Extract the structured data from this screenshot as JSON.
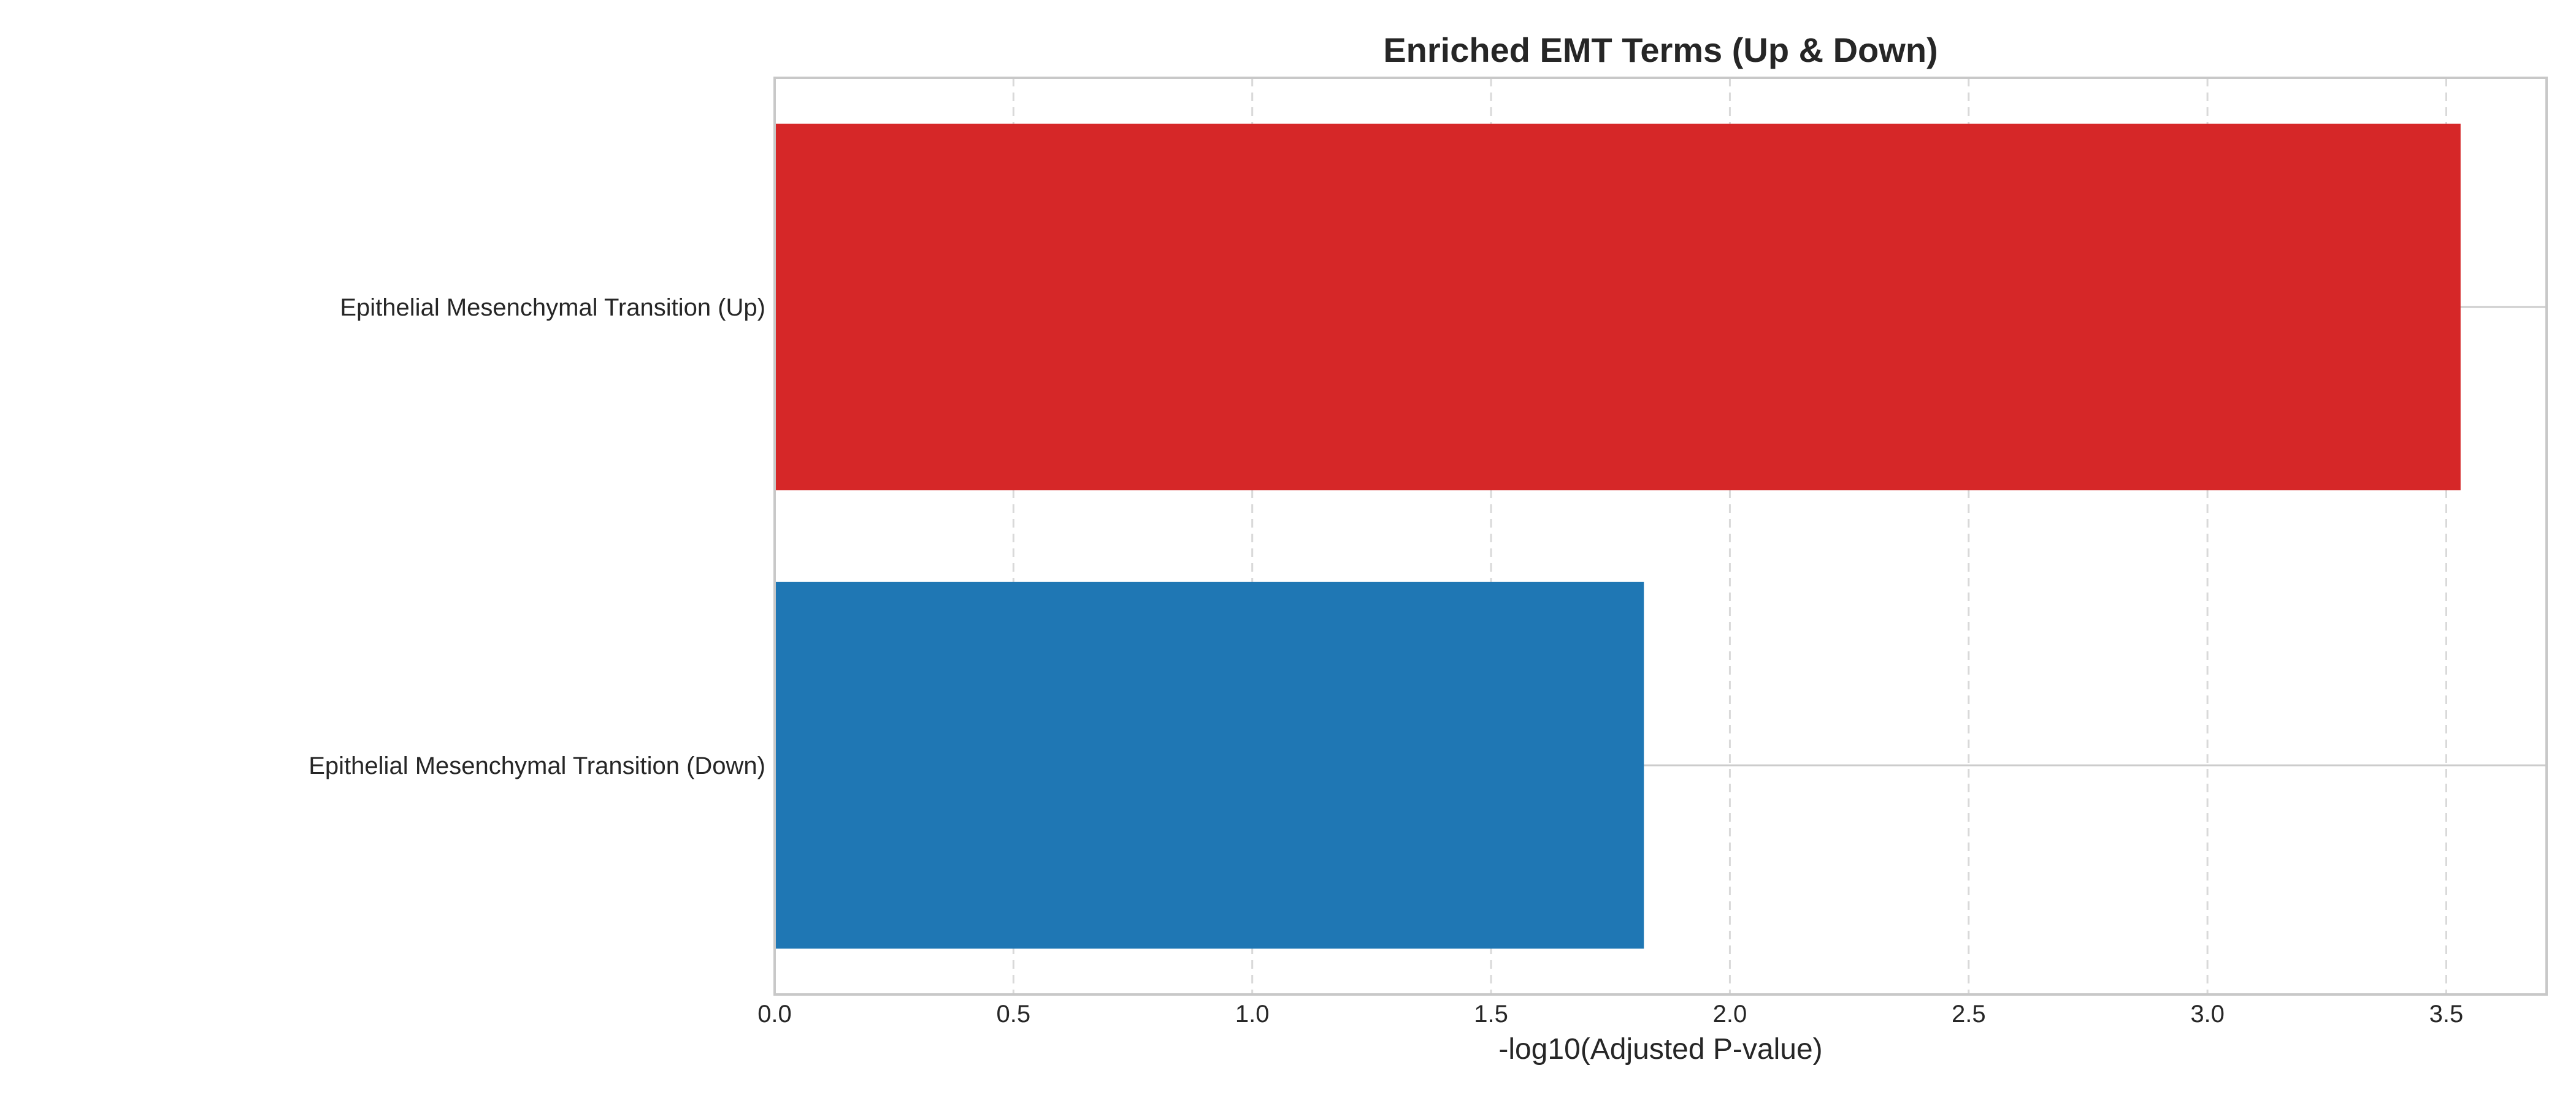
{
  "chart_data": {
    "type": "bar",
    "orientation": "horizontal",
    "title": "Enriched EMT Terms (Up & Down)",
    "xlabel": "-log10(Adjusted P-value)",
    "ylabel": "",
    "categories": [
      "Epithelial Mesenchymal Transition (Up)",
      "Epithelial Mesenchymal Transition (Down)"
    ],
    "values": [
      3.53,
      1.82
    ],
    "colors": [
      "#d62728",
      "#1f77b4"
    ],
    "xlim": [
      0,
      3.71
    ],
    "xticks": [
      0.0,
      0.5,
      1.0,
      1.5,
      2.0,
      2.5,
      3.0,
      3.5
    ],
    "xtick_labels": [
      "0.0",
      "0.5",
      "1.0",
      "1.5",
      "2.0",
      "2.5",
      "3.0",
      "3.5"
    ],
    "grid": true,
    "legend": "none"
  }
}
